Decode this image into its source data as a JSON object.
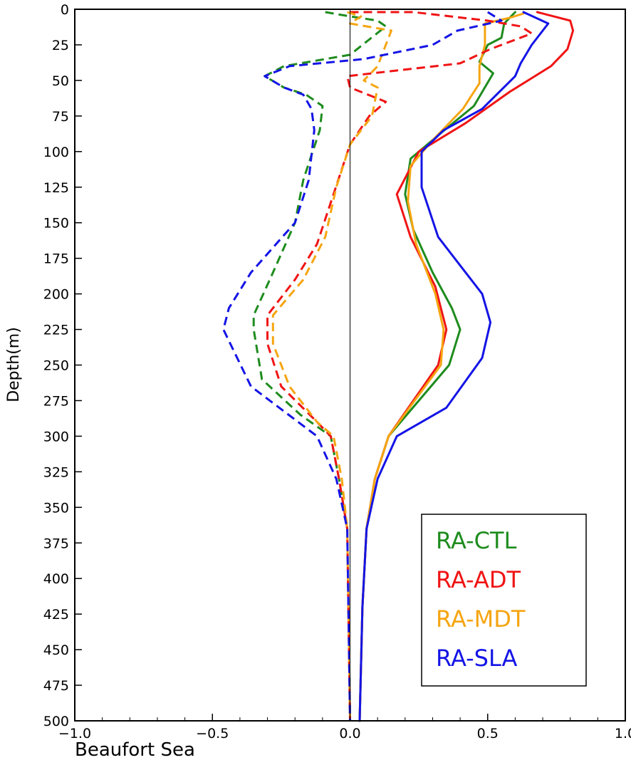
{
  "chart_data": {
    "type": "line",
    "title": "Beaufort Sea",
    "ylabel": "Depth(m)",
    "xlabel": "",
    "xlim": [
      -1.0,
      1.0
    ],
    "ylim": [
      0,
      500
    ],
    "y_inverted": true,
    "x_ticks": [
      -1.0,
      -0.5,
      0.0,
      0.5,
      1.0
    ],
    "x_tick_labels": [
      "−1.0",
      "−0.5",
      "0.0",
      "0.5",
      "1.0"
    ],
    "y_ticks": [
      0,
      25,
      50,
      75,
      100,
      125,
      150,
      175,
      200,
      225,
      250,
      275,
      300,
      325,
      350,
      375,
      400,
      425,
      450,
      475,
      500
    ],
    "y_tick_labels": [
      "0",
      "25",
      "50",
      "75",
      "100",
      "125",
      "150",
      "175",
      "200",
      "225",
      "250",
      "275",
      "300",
      "325",
      "350",
      "375",
      "400",
      "425",
      "450",
      "475",
      "500"
    ],
    "grid": false,
    "legend": {
      "placement": "bottom-right",
      "entries": [
        "RA-CTL",
        "RA-ADT",
        "RA-MDT",
        "RA-SLA"
      ]
    },
    "series": [
      {
        "name": "RA-CTL",
        "style": "solid",
        "color": "#1e8c1e",
        "points": [
          [
            0.6,
            2
          ],
          [
            0.56,
            10
          ],
          [
            0.55,
            20
          ],
          [
            0.5,
            25
          ],
          [
            0.47,
            37
          ],
          [
            0.52,
            45
          ],
          [
            0.45,
            68
          ],
          [
            0.33,
            87
          ],
          [
            0.22,
            105
          ],
          [
            0.2,
            130
          ],
          [
            0.23,
            155
          ],
          [
            0.3,
            185
          ],
          [
            0.37,
            210
          ],
          [
            0.4,
            225
          ],
          [
            0.36,
            250
          ],
          [
            0.14,
            300
          ],
          [
            0.09,
            330
          ],
          [
            0.06,
            365
          ],
          [
            0.045,
            420
          ],
          [
            0.035,
            500
          ]
        ]
      },
      {
        "name": "RA-ADT",
        "style": "solid",
        "color": "#f01414",
        "points": [
          [
            0.68,
            2
          ],
          [
            0.8,
            8
          ],
          [
            0.81,
            15
          ],
          [
            0.79,
            28
          ],
          [
            0.73,
            40
          ],
          [
            0.58,
            58
          ],
          [
            0.42,
            80
          ],
          [
            0.25,
            100
          ],
          [
            0.17,
            130
          ],
          [
            0.22,
            160
          ],
          [
            0.31,
            195
          ],
          [
            0.35,
            225
          ],
          [
            0.32,
            250
          ],
          [
            0.14,
            300
          ],
          [
            0.09,
            330
          ],
          [
            0.06,
            365
          ],
          [
            0.045,
            420
          ],
          [
            0.035,
            500
          ]
        ]
      },
      {
        "name": "RA-MDT",
        "style": "solid",
        "color": "#f5a511",
        "points": [
          [
            0.63,
            3
          ],
          [
            0.58,
            6
          ],
          [
            0.49,
            10
          ],
          [
            0.49,
            25
          ],
          [
            0.47,
            40
          ],
          [
            0.47,
            52
          ],
          [
            0.41,
            70
          ],
          [
            0.3,
            92
          ],
          [
            0.22,
            110
          ],
          [
            0.21,
            135
          ],
          [
            0.24,
            165
          ],
          [
            0.31,
            200
          ],
          [
            0.34,
            225
          ],
          [
            0.33,
            250
          ],
          [
            0.14,
            300
          ],
          [
            0.09,
            330
          ],
          [
            0.06,
            365
          ],
          [
            0.045,
            420
          ],
          [
            0.035,
            500
          ]
        ]
      },
      {
        "name": "RA-SLA",
        "style": "solid",
        "color": "#1414e6",
        "points": [
          [
            0.63,
            2
          ],
          [
            0.72,
            10
          ],
          [
            0.66,
            25
          ],
          [
            0.62,
            38
          ],
          [
            0.6,
            47
          ],
          [
            0.48,
            70
          ],
          [
            0.34,
            85
          ],
          [
            0.26,
            100
          ],
          [
            0.26,
            125
          ],
          [
            0.32,
            160
          ],
          [
            0.48,
            200
          ],
          [
            0.51,
            220
          ],
          [
            0.48,
            245
          ],
          [
            0.35,
            280
          ],
          [
            0.17,
            300
          ],
          [
            0.1,
            330
          ],
          [
            0.06,
            365
          ],
          [
            0.045,
            420
          ],
          [
            0.035,
            500
          ]
        ]
      },
      {
        "name": "RA-CTL (dashed)",
        "style": "dashed",
        "color": "#1e8c1e",
        "points": [
          [
            -0.09,
            2
          ],
          [
            0.0,
            5
          ],
          [
            0.1,
            8
          ],
          [
            0.13,
            12
          ],
          [
            0.0,
            32
          ],
          [
            -0.24,
            40
          ],
          [
            -0.31,
            47
          ],
          [
            -0.24,
            55
          ],
          [
            -0.16,
            60
          ],
          [
            -0.1,
            68
          ],
          [
            -0.11,
            85
          ],
          [
            -0.17,
            120
          ],
          [
            -0.2,
            150
          ],
          [
            -0.28,
            185
          ],
          [
            -0.35,
            215
          ],
          [
            -0.35,
            225
          ],
          [
            -0.32,
            260
          ],
          [
            -0.18,
            285
          ],
          [
            -0.07,
            300
          ],
          [
            -0.04,
            330
          ],
          [
            -0.01,
            365
          ],
          [
            0.0,
            500
          ]
        ]
      },
      {
        "name": "RA-ADT (dashed)",
        "style": "dashed",
        "color": "#f01414",
        "points": [
          [
            0.0,
            2
          ],
          [
            0.23,
            2
          ],
          [
            0.5,
            8
          ],
          [
            0.62,
            12
          ],
          [
            0.66,
            17
          ],
          [
            0.51,
            28
          ],
          [
            0.4,
            38
          ],
          [
            -0.01,
            47
          ],
          [
            0.0,
            55
          ],
          [
            0.13,
            65
          ],
          [
            0.07,
            75
          ],
          [
            0.0,
            95
          ],
          [
            -0.06,
            130
          ],
          [
            -0.12,
            165
          ],
          [
            -0.2,
            190
          ],
          [
            -0.3,
            215
          ],
          [
            -0.3,
            235
          ],
          [
            -0.25,
            265
          ],
          [
            -0.12,
            290
          ],
          [
            -0.07,
            300
          ],
          [
            -0.04,
            330
          ],
          [
            -0.01,
            365
          ],
          [
            0.0,
            500
          ]
        ]
      },
      {
        "name": "RA-MDT (dashed)",
        "style": "dashed",
        "color": "#f5a511",
        "points": [
          [
            -0.01,
            2
          ],
          [
            0.04,
            5
          ],
          [
            0.0,
            10
          ],
          [
            0.15,
            15
          ],
          [
            0.13,
            25
          ],
          [
            0.1,
            40
          ],
          [
            0.05,
            50
          ],
          [
            0.1,
            55
          ],
          [
            0.08,
            75
          ],
          [
            0.0,
            95
          ],
          [
            -0.05,
            125
          ],
          [
            -0.09,
            160
          ],
          [
            -0.17,
            190
          ],
          [
            -0.28,
            215
          ],
          [
            -0.28,
            235
          ],
          [
            -0.22,
            265
          ],
          [
            -0.12,
            290
          ],
          [
            -0.06,
            300
          ],
          [
            -0.03,
            330
          ],
          [
            -0.01,
            365
          ],
          [
            0.0,
            500
          ]
        ]
      },
      {
        "name": "RA-SLA (dashed)",
        "style": "dashed",
        "color": "#1414e6",
        "points": [
          [
            0.5,
            2
          ],
          [
            0.55,
            8
          ],
          [
            0.39,
            15
          ],
          [
            0.3,
            25
          ],
          [
            0.05,
            35
          ],
          [
            -0.22,
            40
          ],
          [
            -0.31,
            47
          ],
          [
            -0.24,
            55
          ],
          [
            -0.17,
            60
          ],
          [
            -0.14,
            70
          ],
          [
            -0.13,
            85
          ],
          [
            -0.15,
            120
          ],
          [
            -0.2,
            150
          ],
          [
            -0.36,
            185
          ],
          [
            -0.44,
            210
          ],
          [
            -0.46,
            225
          ],
          [
            -0.36,
            265
          ],
          [
            -0.12,
            300
          ],
          [
            -0.05,
            330
          ],
          [
            -0.01,
            365
          ],
          [
            0.0,
            500
          ]
        ]
      }
    ]
  }
}
